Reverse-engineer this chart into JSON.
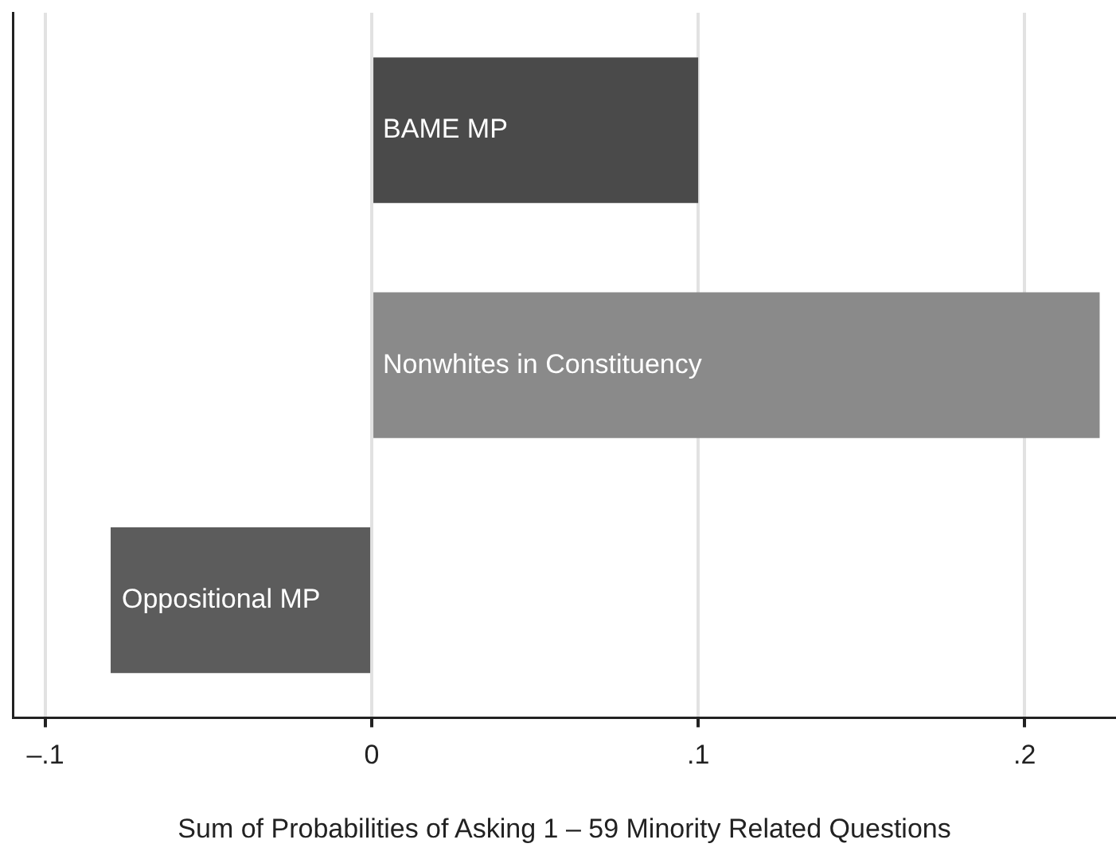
{
  "chart_data": {
    "type": "bar",
    "orientation": "horizontal",
    "xlabel": "Sum of Probabilities of Asking 1 – 59 Minority Related Questions",
    "categories": [
      "BAME MP",
      "Nonwhites in Constituency",
      "Oppositional MP"
    ],
    "values": [
      0.1,
      0.223,
      -0.08
    ],
    "colors": [
      "#4a4a4a",
      "#8a8a8a",
      "#5c5c5c"
    ],
    "xlim": [
      -0.11,
      0.228
    ],
    "xticks": [
      {
        "value": -0.1,
        "label": "–.1"
      },
      0,
      {
        "value": 0.1,
        "label": ".1"
      },
      {
        "value": 0.2,
        "label": ".2"
      }
    ],
    "grid": "x",
    "legend": false
  }
}
